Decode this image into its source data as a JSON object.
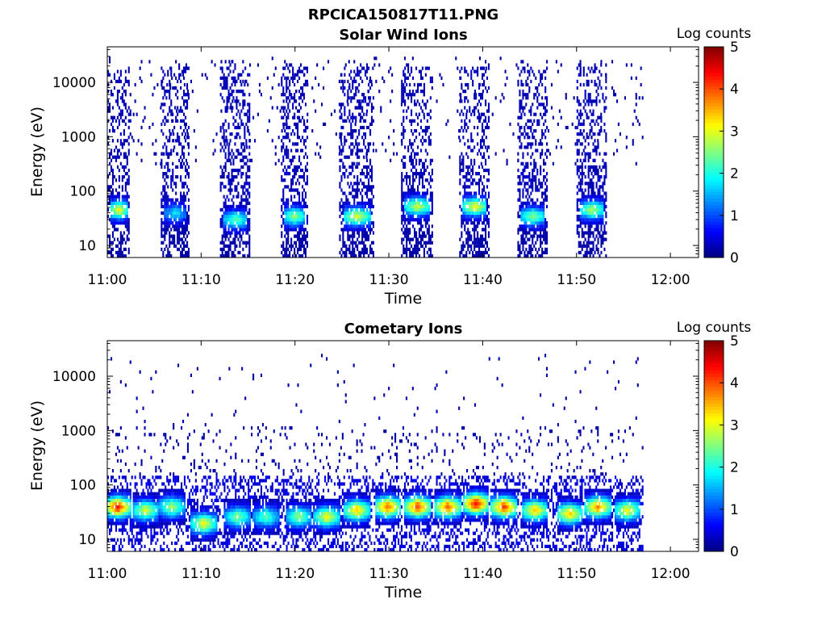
{
  "figure_title": "RPCICA150817T11.PNG",
  "chart_data": [
    {
      "type": "heatmap",
      "title": "Solar Wind Ions",
      "xlabel": "Time",
      "ylabel": "Energy (eV)",
      "x_ticks": [
        "11:00",
        "11:10",
        "11:20",
        "11:30",
        "11:40",
        "11:50",
        "12:00"
      ],
      "x_range": [
        "11:00",
        "12:03"
      ],
      "y_scale": "log",
      "y_ticks": [
        "10",
        "100",
        "1000",
        "10000"
      ],
      "y_range": [
        6,
        45000
      ],
      "colorbar": {
        "label": "Log counts",
        "ticks": [
          "0",
          "1",
          "2",
          "3",
          "4",
          "5"
        ],
        "range": [
          0,
          5
        ],
        "colormap": "jet"
      },
      "data_extent_minutes": [
        0,
        57
      ],
      "bursts": [
        {
          "start_min": 0.0,
          "end_min": 2.3,
          "peak_energy_ev": 45,
          "peak_log_counts": 3.0
        },
        {
          "start_min": 5.7,
          "end_min": 8.7,
          "peak_energy_ev": 40,
          "peak_log_counts": 1.6
        },
        {
          "start_min": 12.0,
          "end_min": 15.2,
          "peak_energy_ev": 30,
          "peak_log_counts": 2.2
        },
        {
          "start_min": 18.5,
          "end_min": 21.3,
          "peak_energy_ev": 35,
          "peak_log_counts": 2.5
        },
        {
          "start_min": 24.7,
          "end_min": 28.3,
          "peak_energy_ev": 35,
          "peak_log_counts": 2.8
        },
        {
          "start_min": 31.3,
          "end_min": 34.7,
          "peak_energy_ev": 55,
          "peak_log_counts": 2.7
        },
        {
          "start_min": 37.5,
          "end_min": 40.7,
          "peak_energy_ev": 50,
          "peak_log_counts": 3.0
        },
        {
          "start_min": 43.7,
          "end_min": 46.8,
          "peak_energy_ev": 35,
          "peak_log_counts": 2.4
        },
        {
          "start_min": 50.0,
          "end_min": 53.2,
          "peak_energy_ev": 45,
          "peak_log_counts": 2.6
        }
      ]
    },
    {
      "type": "heatmap",
      "title": "Cometary Ions",
      "xlabel": "Time",
      "ylabel": "Energy (eV)",
      "x_ticks": [
        "11:00",
        "11:10",
        "11:20",
        "11:30",
        "11:40",
        "11:50",
        "12:00"
      ],
      "x_range": [
        "11:00",
        "12:03"
      ],
      "y_scale": "log",
      "y_ticks": [
        "10",
        "100",
        "1000",
        "10000"
      ],
      "y_range": [
        6,
        45000
      ],
      "colorbar": {
        "label": "Log counts",
        "ticks": [
          "0",
          "1",
          "2",
          "3",
          "4",
          "5"
        ],
        "range": [
          0,
          5
        ],
        "colormap": "jet"
      },
      "data_extent_minutes": [
        0,
        57
      ],
      "features": [
        {
          "center_min": 1.0,
          "energy_ev": 40,
          "peak_log_counts": 4.2
        },
        {
          "center_min": 4.0,
          "energy_ev": 35,
          "peak_log_counts": 2.8
        },
        {
          "center_min": 6.8,
          "energy_ev": 40,
          "peak_log_counts": 2.6
        },
        {
          "center_min": 10.2,
          "energy_ev": 20,
          "peak_log_counts": 3.0
        },
        {
          "center_min": 13.8,
          "energy_ev": 25,
          "peak_log_counts": 2.4
        },
        {
          "center_min": 16.8,
          "energy_ev": 25,
          "peak_log_counts": 2.2
        },
        {
          "center_min": 20.3,
          "energy_ev": 25,
          "peak_log_counts": 2.5
        },
        {
          "center_min": 23.3,
          "energy_ev": 25,
          "peak_log_counts": 3.0
        },
        {
          "center_min": 26.5,
          "energy_ev": 35,
          "peak_log_counts": 3.3
        },
        {
          "center_min": 29.8,
          "energy_ev": 40,
          "peak_log_counts": 3.8
        },
        {
          "center_min": 33.0,
          "energy_ev": 40,
          "peak_log_counts": 4.0
        },
        {
          "center_min": 36.2,
          "energy_ev": 40,
          "peak_log_counts": 3.8
        },
        {
          "center_min": 39.2,
          "energy_ev": 45,
          "peak_log_counts": 4.3
        },
        {
          "center_min": 42.2,
          "energy_ev": 40,
          "peak_log_counts": 4.0
        },
        {
          "center_min": 45.5,
          "energy_ev": 35,
          "peak_log_counts": 3.3
        },
        {
          "center_min": 49.2,
          "energy_ev": 30,
          "peak_log_counts": 3.3
        },
        {
          "center_min": 52.2,
          "energy_ev": 40,
          "peak_log_counts": 3.6
        },
        {
          "center_min": 55.3,
          "energy_ev": 35,
          "peak_log_counts": 3.0
        }
      ]
    }
  ]
}
